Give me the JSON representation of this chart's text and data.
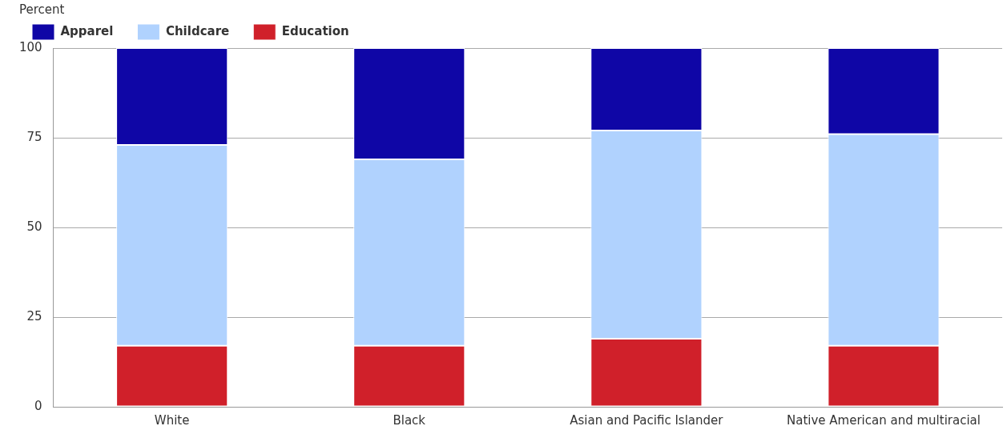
{
  "chart_data": {
    "type": "bar",
    "stacked": true,
    "ylabel": "Percent",
    "categories": [
      "White",
      "Black",
      "Asian and Pacific Islander",
      "Native American and multiracial"
    ],
    "series": [
      {
        "name": "Education",
        "color": "#d0202a",
        "values": [
          17,
          17,
          19,
          17
        ]
      },
      {
        "name": "Childcare",
        "color": "#b0d2fe",
        "values": [
          56,
          52,
          58,
          59
        ]
      },
      {
        "name": "Apparel",
        "color": "#0f06a6",
        "values": [
          27,
          31,
          23,
          24
        ]
      }
    ],
    "ylim": [
      0,
      100
    ],
    "yticks": [
      0,
      25,
      50,
      75,
      100
    ],
    "grid": "y",
    "legend": "top left"
  }
}
